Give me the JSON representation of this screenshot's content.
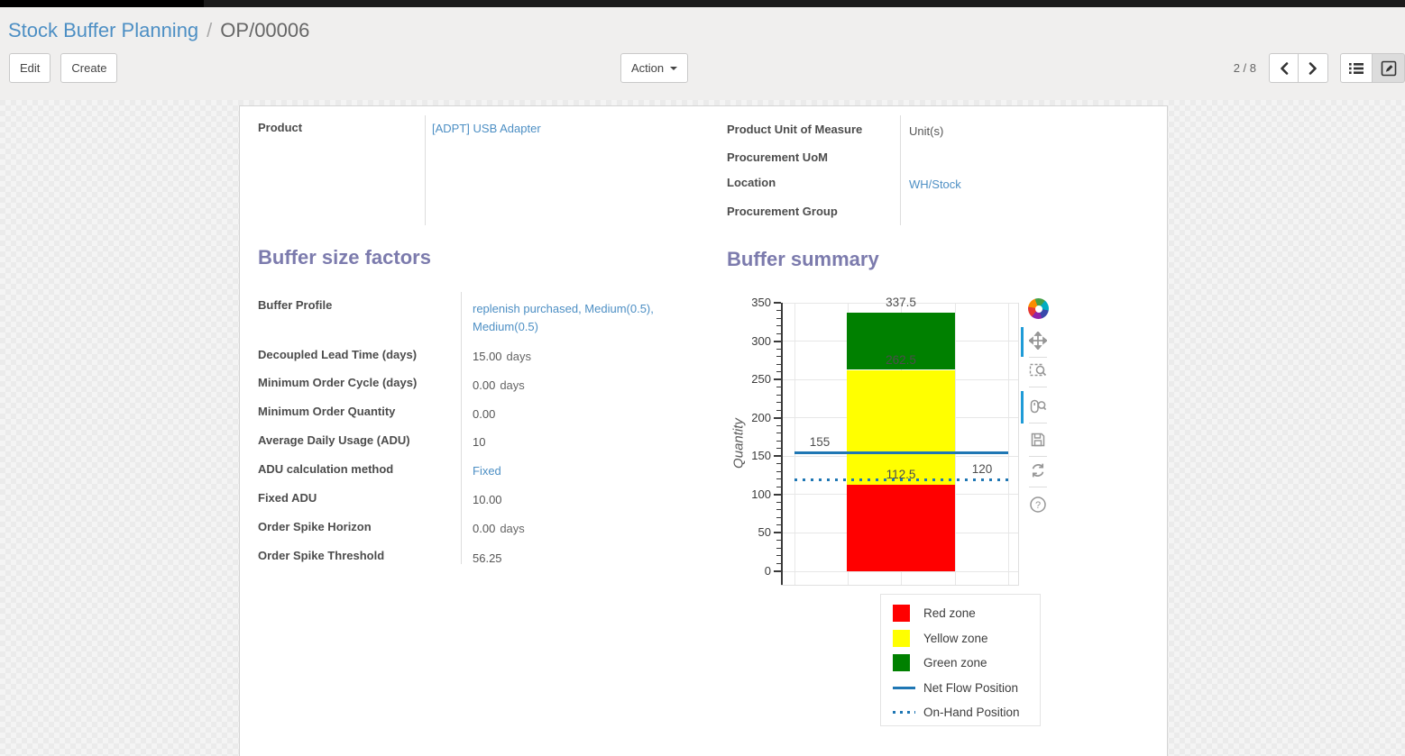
{
  "breadcrumb": {
    "parent": "Stock Buffer Planning",
    "separator": "/",
    "current": "OP/00006"
  },
  "control_panel": {
    "edit_label": "Edit",
    "create_label": "Create",
    "action_label": "Action",
    "pager": "2 / 8",
    "active_view": "form"
  },
  "colors": {
    "accent_link": "#4d8fc4",
    "section_title": "#7c7bad",
    "toolbar_active": "#1f9bd7"
  },
  "form": {
    "fields_top": {
      "product": {
        "label": "Product",
        "value": "[ADPT] USB Adapter"
      },
      "product_uom": {
        "label": "Product Unit of Measure",
        "value": "Unit(s)"
      },
      "procurement_uom": {
        "label": "Procurement UoM",
        "value": ""
      },
      "location": {
        "label": "Location",
        "value": "WH/Stock"
      },
      "procurement_group": {
        "label": "Procurement Group",
        "value": ""
      }
    },
    "buffer_size_factors": {
      "title": "Buffer size factors",
      "rows": [
        {
          "label": "Buffer Profile",
          "value": "replenish purchased, Medium(0.5), Medium(0.5)",
          "suffix": "",
          "link": true
        },
        {
          "label": "Decoupled Lead Time (days)",
          "value": "15.00",
          "suffix": "days",
          "link": false
        },
        {
          "label": "Minimum Order Cycle (days)",
          "value": "0.00",
          "suffix": "days",
          "link": false
        },
        {
          "label": "Minimum Order Quantity",
          "value": "0.00",
          "suffix": "",
          "link": false
        },
        {
          "label": "Average Daily Usage (ADU)",
          "value": "10",
          "suffix": "",
          "link": false
        },
        {
          "label": "ADU calculation method",
          "value": "Fixed",
          "suffix": "",
          "link": true
        },
        {
          "label": "Fixed ADU",
          "value": "10.00",
          "suffix": "",
          "link": false
        },
        {
          "label": "Order Spike Horizon",
          "value": "0.00",
          "suffix": "days",
          "link": false
        },
        {
          "label": "Order Spike Threshold",
          "value": "56.25",
          "suffix": "",
          "link": false
        }
      ]
    },
    "buffer_summary": {
      "title": "Buffer summary"
    }
  },
  "chart_data": {
    "type": "bar",
    "title": "Buffer summary",
    "ylabel": "Quantity",
    "xlabel": "",
    "ylim": [
      0,
      350
    ],
    "ytick_interval": 50,
    "minor_tick_step": 10,
    "yticks": [
      0,
      50,
      100,
      150,
      200,
      250,
      300,
      350
    ],
    "grid": true,
    "series": [
      {
        "name": "Red zone",
        "color": "#ff0000",
        "from": 0,
        "to": 112.5
      },
      {
        "name": "Yellow zone",
        "color": "#ffff00",
        "from": 112.5,
        "to": 262.5
      },
      {
        "name": "Green zone",
        "color": "#008000",
        "from": 262.5,
        "to": 337.5
      }
    ],
    "lines": [
      {
        "name": "Net Flow Position",
        "value": 155,
        "style": "solid",
        "color": "#1f77b4"
      },
      {
        "name": "On-Hand Position",
        "value": 120,
        "style": "dotted",
        "color": "#1f77b4"
      }
    ],
    "annotations": [
      {
        "text": "337.5",
        "value": 337.5,
        "anchor": "bar-center"
      },
      {
        "text": "262.5",
        "value": 262.5,
        "anchor": "bar-center"
      },
      {
        "text": "112.5",
        "value": 112.5,
        "anchor": "bar-center"
      },
      {
        "text": "155",
        "value": 155,
        "anchor": "left"
      },
      {
        "text": "120",
        "value": 120,
        "anchor": "right"
      }
    ],
    "legend_position": "below-right",
    "legend_items": [
      {
        "label": "Red zone",
        "swatch": "square",
        "color": "#ff0000"
      },
      {
        "label": "Yellow zone",
        "swatch": "square",
        "color": "#ffff00"
      },
      {
        "label": "Green zone",
        "swatch": "square",
        "color": "#008000"
      },
      {
        "label": "Net Flow Position",
        "swatch": "line",
        "color": "#1f77b4"
      },
      {
        "label": "On-Hand Position",
        "swatch": "dotted",
        "color": "#1f77b4"
      }
    ]
  },
  "chart_toolbar": {
    "icons": [
      "bokeh-logo",
      "pan",
      "box-zoom",
      "wheel-zoom",
      "save",
      "reset",
      "help"
    ],
    "active": [
      "pan",
      "wheel-zoom"
    ]
  }
}
